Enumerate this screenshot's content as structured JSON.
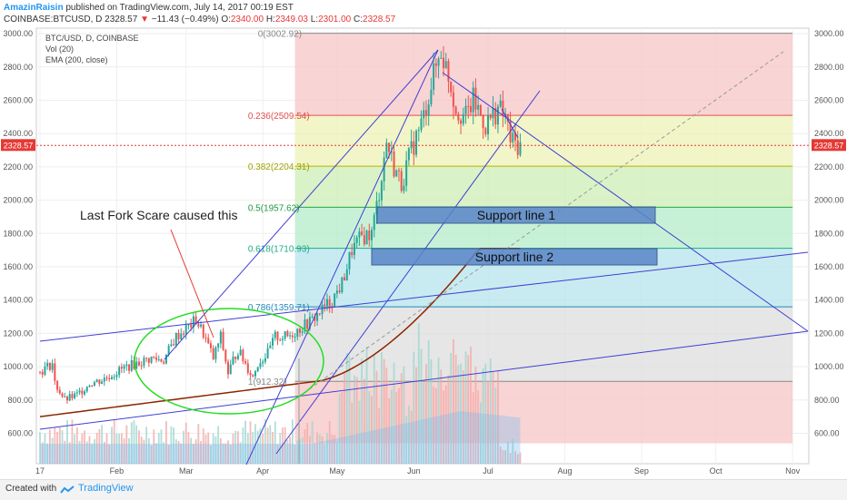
{
  "header": {
    "author": "AmazinRaisin",
    "published": "published on TradingView.com, July 14, 2017 00:19 EST",
    "symbol": "COINBASE:BTCUSD, D",
    "last": "2328.57",
    "change": "−11.43 (−0.49%)",
    "o_label": "O:",
    "o_val": "2340.00",
    "h_label": "H:",
    "h_val": "2349.03",
    "l_label": "L:",
    "l_val": "2301.00",
    "c_label": "C:",
    "c_val": "2328.57"
  },
  "legend": [
    "BTC/USD, D, COINBASE",
    "Vol (20)",
    "EMA (200, close)"
  ],
  "footer": {
    "created_with": "Created with",
    "brand": "TradingView"
  },
  "colors": {
    "bull": "#26a69a",
    "bear": "#ef5350",
    "ema": "#8b2500",
    "trend": "#3f3fd4",
    "annotation": "#e53935",
    "circle": "#22dd22"
  },
  "chart_data": {
    "type": "candlestick",
    "ylim": [
      500,
      3100
    ],
    "yticks": [
      600,
      800,
      1000,
      1200,
      1400,
      1600,
      1800,
      2000,
      2200,
      2400,
      2600,
      2800,
      3000
    ],
    "ytick_labels": [
      "600.00",
      "800.00",
      "1000.00",
      "1200.00",
      "1400.00",
      "1600.00",
      "1800.00",
      "2000.00",
      "2200.00",
      "2400.00",
      "2600.00",
      "2800.00",
      "3000.00"
    ],
    "xticks": [
      "2017",
      "Feb",
      "Mar",
      "Apr",
      "May",
      "Jun",
      "Jul",
      "Aug",
      "Sep",
      "Oct",
      "Nov"
    ],
    "last_price": "2328.57",
    "fib_levels": [
      {
        "ratio": 0,
        "price": 3002.92,
        "label": "0(3002.92)"
      },
      {
        "ratio": 0.236,
        "price": 2509.54,
        "label": "0.236(2509.54)"
      },
      {
        "ratio": 0.382,
        "price": 2204.31,
        "label": "0.382(2204.31)"
      },
      {
        "ratio": 0.5,
        "price": 1957.62,
        "label": "0.5(1957.62)"
      },
      {
        "ratio": 0.618,
        "price": 1710.93,
        "label": "0.618(1710.93)"
      },
      {
        "ratio": 0.786,
        "price": 1359.71,
        "label": "0.786(1359.71)"
      },
      {
        "ratio": 1,
        "price": 912.32,
        "label": "1(912.32)"
      }
    ],
    "annotations": {
      "support_1": "Support line 1",
      "support_2": "Support line 2",
      "fork_note": "Last Fork Scare caused this"
    },
    "monthly_closes": [
      {
        "month": "Jan",
        "close": 970
      },
      {
        "month": "Feb",
        "close": 1190
      },
      {
        "month": "Mar",
        "close": 1080
      },
      {
        "month": "Apr",
        "close": 1350
      },
      {
        "month": "May",
        "close": 2300
      },
      {
        "month": "Jun",
        "close": 2480
      },
      {
        "month": "Jul (to 14th)",
        "close": 2328.57
      }
    ],
    "ema200_range": [
      700,
      1710
    ]
  }
}
